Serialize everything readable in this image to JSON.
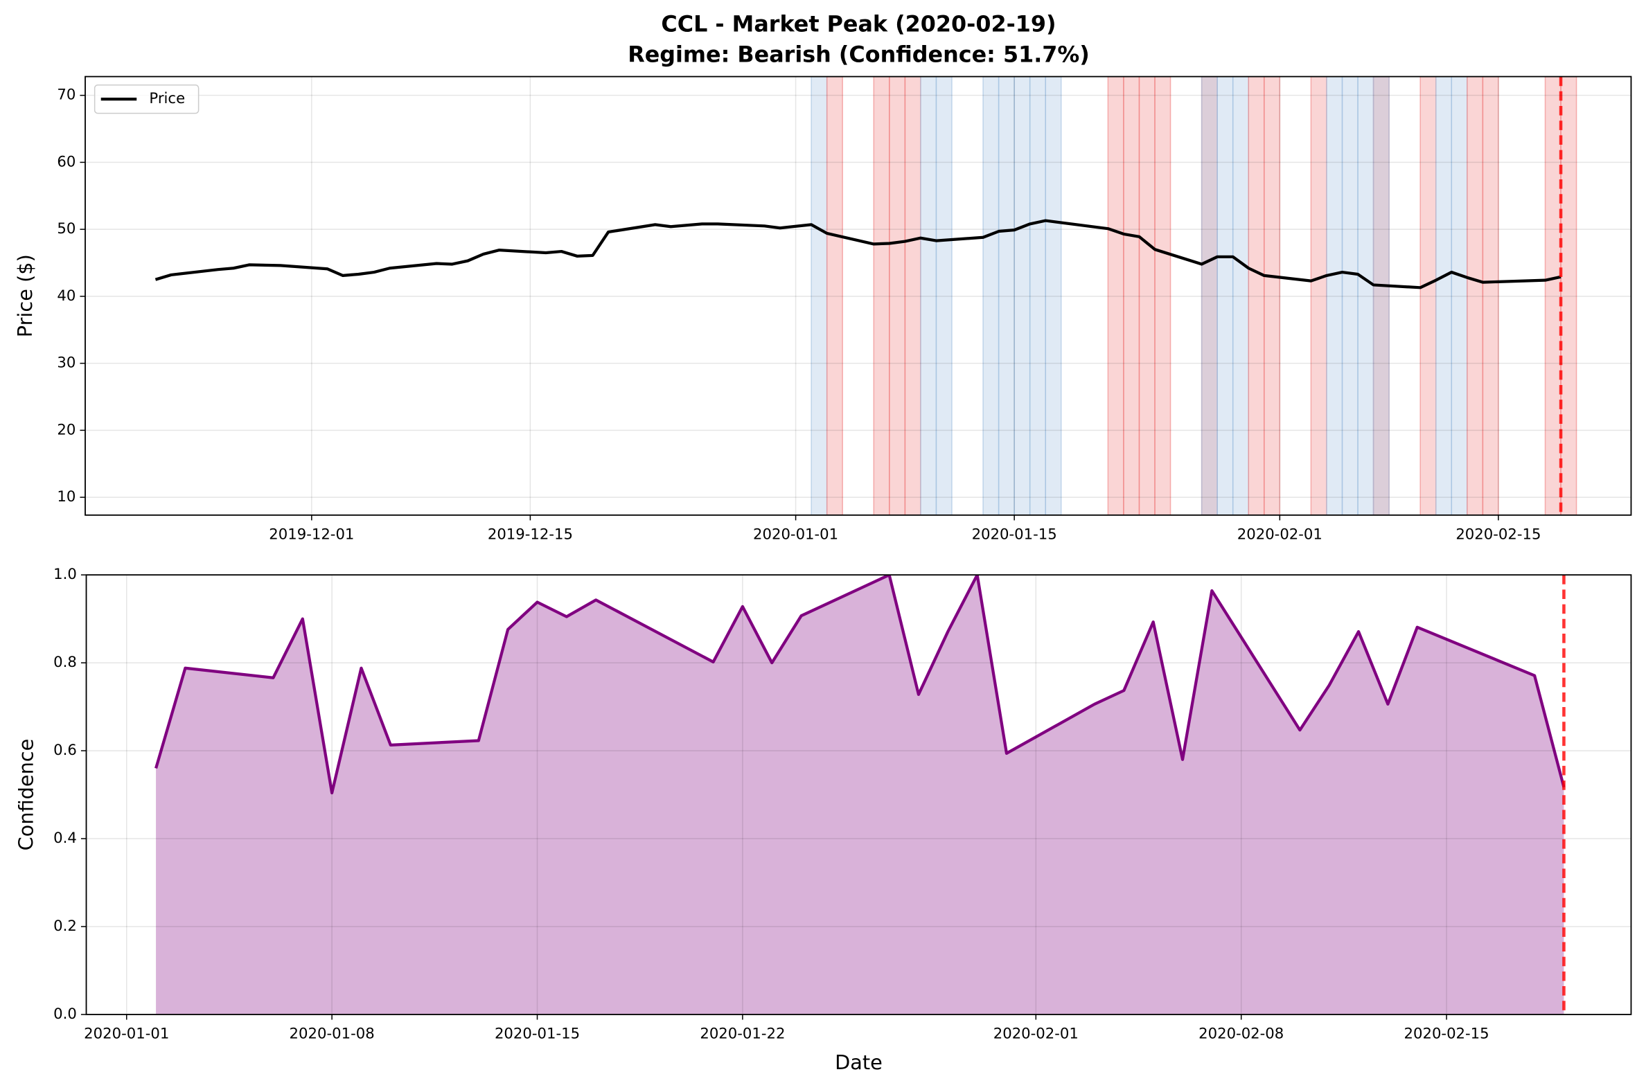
{
  "chart_data": [
    {
      "type": "line",
      "title": [
        "CCL - Market Peak (2020-02-19)",
        "Regime: Bearish (Confidence: 51.7%)"
      ],
      "ylabel": "Price ($)",
      "x": [
        "2019-11-21",
        "2019-11-22",
        "2019-11-25",
        "2019-11-26",
        "2019-11-27",
        "2019-11-29",
        "2019-12-02",
        "2019-12-03",
        "2019-12-04",
        "2019-12-05",
        "2019-12-06",
        "2019-12-09",
        "2019-12-10",
        "2019-12-11",
        "2019-12-12",
        "2019-12-13",
        "2019-12-16",
        "2019-12-17",
        "2019-12-18",
        "2019-12-19",
        "2019-12-20",
        "2019-12-23",
        "2019-12-24",
        "2019-12-26",
        "2019-12-27",
        "2019-12-30",
        "2019-12-31",
        "2020-01-02",
        "2020-01-03",
        "2020-01-06",
        "2020-01-07",
        "2020-01-08",
        "2020-01-09",
        "2020-01-10",
        "2020-01-13",
        "2020-01-14",
        "2020-01-15",
        "2020-01-16",
        "2020-01-17",
        "2020-01-21",
        "2020-01-22",
        "2020-01-23",
        "2020-01-24",
        "2020-01-27",
        "2020-01-28",
        "2020-01-29",
        "2020-01-30",
        "2020-01-31",
        "2020-02-03",
        "2020-02-04",
        "2020-02-05",
        "2020-02-06",
        "2020-02-07",
        "2020-02-10",
        "2020-02-11",
        "2020-02-12",
        "2020-02-13",
        "2020-02-14",
        "2020-02-18",
        "2020-02-19"
      ],
      "series": [
        {
          "name": "Price",
          "color": "#000000",
          "values": [
            42.5,
            43.2,
            44.0,
            44.2,
            44.7,
            44.6,
            44.1,
            43.1,
            43.3,
            43.6,
            44.2,
            44.9,
            44.8,
            45.3,
            46.3,
            46.9,
            46.5,
            46.7,
            46.0,
            46.1,
            49.6,
            50.7,
            50.4,
            50.8,
            50.8,
            50.5,
            50.2,
            50.7,
            49.4,
            47.8,
            47.9,
            48.2,
            48.7,
            48.3,
            48.8,
            49.7,
            49.9,
            50.8,
            51.3,
            50.1,
            49.3,
            48.9,
            47.0,
            44.8,
            45.9,
            45.9,
            44.2,
            43.1,
            42.3,
            43.1,
            43.6,
            43.3,
            41.7,
            41.3,
            42.4,
            43.6,
            42.8,
            42.1,
            42.4,
            42.9
          ]
        }
      ],
      "xlim": [
        "2019-11-16T12:00",
        "2020-02-23T12:00"
      ],
      "ylim": [
        7.34,
        72.8
      ],
      "yticks": [
        10,
        20,
        30,
        40,
        50,
        60,
        70
      ],
      "xticks": [
        "2019-12-01",
        "2019-12-15",
        "2020-01-01",
        "2020-01-15",
        "2020-02-01",
        "2020-02-15"
      ],
      "grid": true,
      "legend": "upper left",
      "bands": [
        {
          "x": "2020-01-02",
          "color": "#a0bfe0"
        },
        {
          "x": "2020-01-03",
          "color": "#f08080"
        },
        {
          "x": "2020-01-06",
          "color": "#f08080"
        },
        {
          "x": "2020-01-07",
          "color": "#f08080"
        },
        {
          "x": "2020-01-08",
          "color": "#f08080"
        },
        {
          "x": "2020-01-09",
          "color": "#a0bfe0"
        },
        {
          "x": "2020-01-10",
          "color": "#a0bfe0"
        },
        {
          "x": "2020-01-13",
          "color": "#a0bfe0"
        },
        {
          "x": "2020-01-14",
          "color": "#a0bfe0"
        },
        {
          "x": "2020-01-15",
          "color": "#a0bfe0"
        },
        {
          "x": "2020-01-16",
          "color": "#a0bfe0"
        },
        {
          "x": "2020-01-17",
          "color": "#a0bfe0"
        },
        {
          "x": "2020-01-21",
          "color": "#f08080"
        },
        {
          "x": "2020-01-22",
          "color": "#f08080"
        },
        {
          "x": "2020-01-23",
          "color": "#f08080"
        },
        {
          "x": "2020-01-24",
          "color": "#f08080"
        },
        {
          "x": "2020-01-27",
          "color": "#f08080"
        },
        {
          "x": "2020-01-27",
          "color": "#a0bfe0"
        },
        {
          "x": "2020-01-28",
          "color": "#a0bfe0"
        },
        {
          "x": "2020-01-29",
          "color": "#a0bfe0"
        },
        {
          "x": "2020-01-30",
          "color": "#f08080"
        },
        {
          "x": "2020-01-31",
          "color": "#f08080"
        },
        {
          "x": "2020-02-03",
          "color": "#f08080"
        },
        {
          "x": "2020-02-04",
          "color": "#a0bfe0"
        },
        {
          "x": "2020-02-05",
          "color": "#a0bfe0"
        },
        {
          "x": "2020-02-06",
          "color": "#a0bfe0"
        },
        {
          "x": "2020-02-07",
          "color": "#f08080"
        },
        {
          "x": "2020-02-07",
          "color": "#a0bfe0"
        },
        {
          "x": "2020-02-10",
          "color": "#f08080"
        },
        {
          "x": "2020-02-11",
          "color": "#a0bfe0"
        },
        {
          "x": "2020-02-12",
          "color": "#a0bfe0"
        },
        {
          "x": "2020-02-13",
          "color": "#f08080"
        },
        {
          "x": "2020-02-14",
          "color": "#f08080"
        },
        {
          "x": "2020-02-18",
          "color": "#f08080"
        },
        {
          "x": "2020-02-19",
          "color": "#f08080"
        }
      ],
      "vline": {
        "x": "2020-02-19",
        "color": "#ff0000"
      }
    },
    {
      "type": "line",
      "xlabel": "Date",
      "ylabel": "Confidence",
      "x": [
        "2020-01-02",
        "2020-01-03",
        "2020-01-06",
        "2020-01-07",
        "2020-01-08",
        "2020-01-09",
        "2020-01-10",
        "2020-01-13",
        "2020-01-14",
        "2020-01-15",
        "2020-01-16",
        "2020-01-17",
        "2020-01-21",
        "2020-01-22",
        "2020-01-23",
        "2020-01-24",
        "2020-01-27",
        "2020-01-28",
        "2020-01-29",
        "2020-01-30",
        "2020-01-31",
        "2020-02-03",
        "2020-02-04",
        "2020-02-05",
        "2020-02-06",
        "2020-02-07",
        "2020-02-10",
        "2020-02-11",
        "2020-02-12",
        "2020-02-13",
        "2020-02-14",
        "2020-02-18",
        "2020-02-19"
      ],
      "values": [
        0.56,
        0.788,
        0.766,
        0.9,
        0.504,
        0.788,
        0.613,
        0.623,
        0.876,
        0.938,
        0.905,
        0.943,
        0.802,
        0.928,
        0.8,
        0.907,
        1.0,
        0.728,
        0.871,
        1.0,
        0.594,
        0.706,
        0.737,
        0.893,
        0.58,
        0.964,
        0.647,
        0.749,
        0.871,
        0.706,
        0.881,
        0.771,
        0.517
      ],
      "color": "#800080",
      "fill": true,
      "xlim": [
        "2019-12-30T15:00",
        "2020-02-21T07:00"
      ],
      "ylim": [
        0,
        1
      ],
      "yticks": [
        {
          "value": 0,
          "label": "0.0"
        },
        {
          "value": 0.2,
          "label": "0.2"
        },
        {
          "value": 0.4,
          "label": "0.4"
        },
        {
          "value": 0.6,
          "label": "0.6"
        },
        {
          "value": 0.8,
          "label": "0.8"
        },
        {
          "value": 1,
          "label": "1.0"
        }
      ],
      "xticks": [
        "2020-01-01",
        "2020-01-08",
        "2020-01-15",
        "2020-01-22",
        "2020-02-01",
        "2020-02-08",
        "2020-02-15"
      ],
      "grid": true,
      "vline": {
        "x": "2020-02-19",
        "color": "#ff0000"
      }
    }
  ]
}
